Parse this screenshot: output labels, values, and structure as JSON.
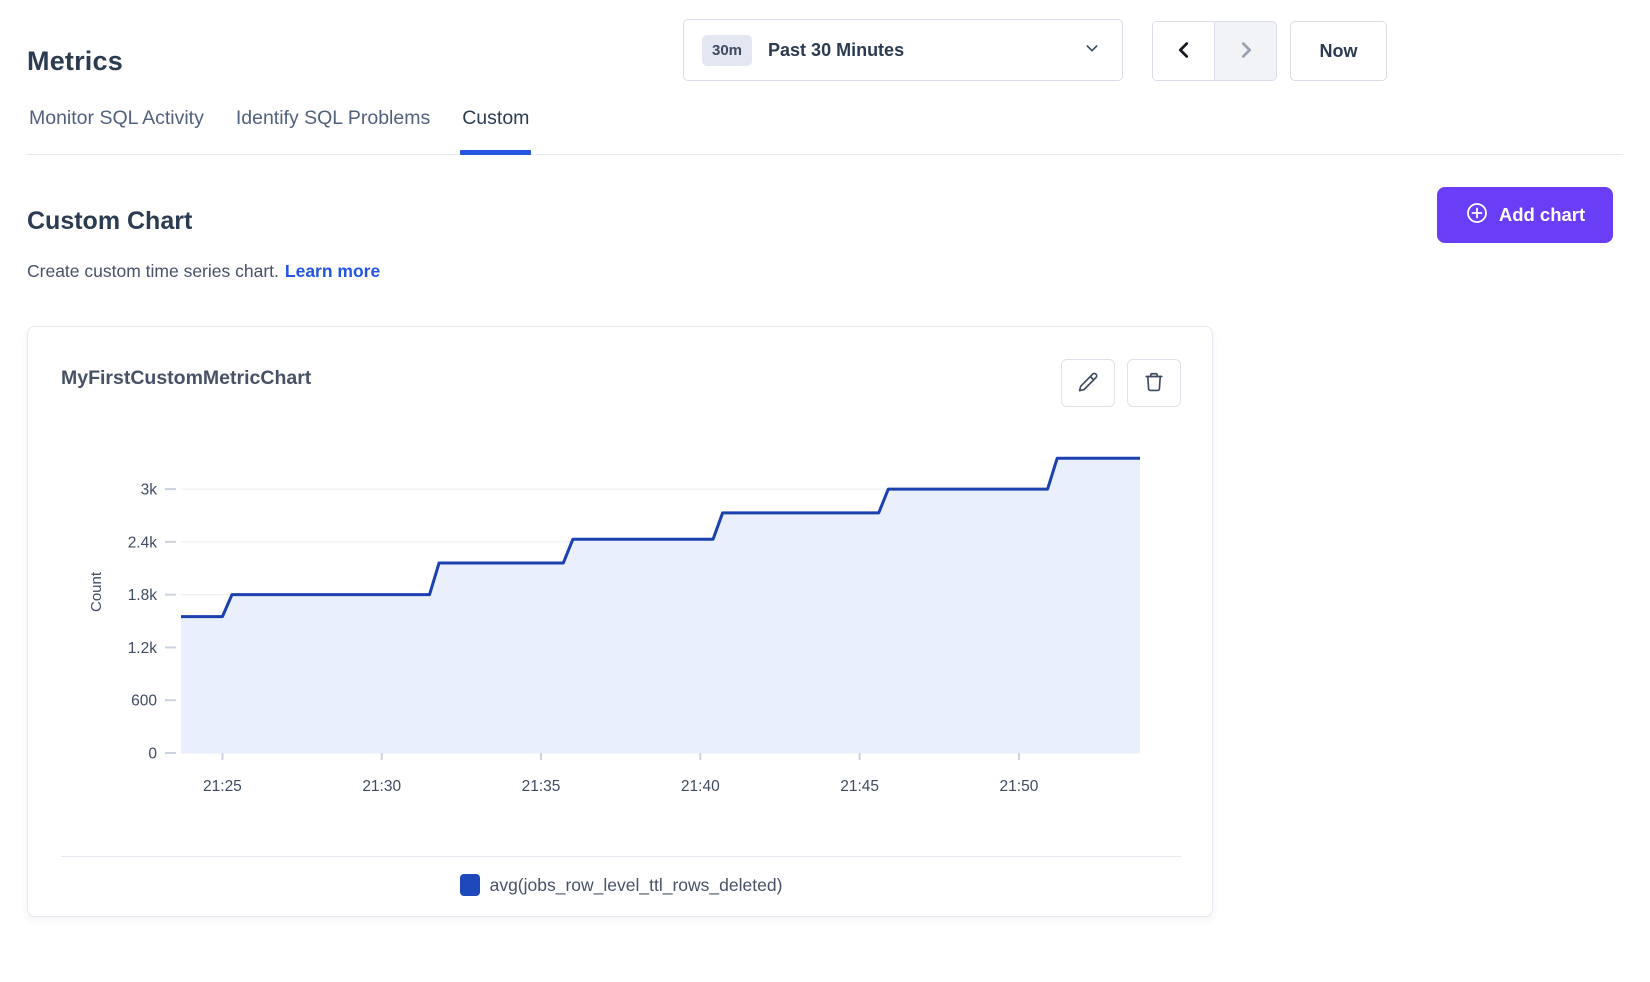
{
  "header": {
    "title": "Metrics"
  },
  "time_controls": {
    "range_badge": "30m",
    "range_label": "Past 30 Minutes",
    "now_label": "Now"
  },
  "tabs": [
    {
      "label": "Monitor SQL Activity",
      "active": false
    },
    {
      "label": "Identify SQL Problems",
      "active": false
    },
    {
      "label": "Custom",
      "active": true
    }
  ],
  "section": {
    "title": "Custom Chart",
    "description": "Create custom time series chart.",
    "learn_more_label": "Learn more",
    "add_chart_label": "Add chart"
  },
  "chart_card": {
    "title": "MyFirstCustomMetricChart"
  },
  "icons": {
    "range_dropdown": "chevron-down",
    "prev": "chevron-left",
    "next": "chevron-right (disabled)",
    "add": "plus-circle",
    "edit": "pencil",
    "delete": "trash"
  },
  "colors": {
    "accent_purple": "#6a3df7",
    "link_blue": "#2455e4",
    "tab_underline": "#2556e0",
    "series_line": "#1b40b0",
    "series_fill": "#e9effc",
    "legend_swatch": "#1e48bb"
  },
  "chart_data": {
    "type": "area",
    "title": "MyFirstCustomMetricChart",
    "ylabel": "Count",
    "xlabel": "",
    "grid": true,
    "legend_position": "bottom",
    "x_axis": "time of day (HH:MM)",
    "t_range_minutes_after_21h": [
      23.7,
      53.8
    ],
    "ylim": [
      0,
      3660
    ],
    "y_ticks": [
      {
        "v": 0,
        "label": "0"
      },
      {
        "v": 600,
        "label": "600"
      },
      {
        "v": 1200,
        "label": "1.2k"
      },
      {
        "v": 1800,
        "label": "1.8k"
      },
      {
        "v": 2400,
        "label": "2.4k"
      },
      {
        "v": 3000,
        "label": "3k"
      }
    ],
    "x_ticks": [
      {
        "t": 25,
        "label": "21:25"
      },
      {
        "t": 30,
        "label": "21:30"
      },
      {
        "t": 35,
        "label": "21:35"
      },
      {
        "t": 40,
        "label": "21:40"
      },
      {
        "t": 45,
        "label": "21:45"
      },
      {
        "t": 50,
        "label": "21:50"
      }
    ],
    "series": [
      {
        "name": "avg(jobs_row_level_ttl_rows_deleted)",
        "line_color": "#1b40b0",
        "fill_color": "#e9effc",
        "points_t_v": [
          [
            23.7,
            1550
          ],
          [
            25.0,
            1550
          ],
          [
            25.3,
            1800
          ],
          [
            31.5,
            1800
          ],
          [
            31.8,
            2160
          ],
          [
            35.7,
            2160
          ],
          [
            36.0,
            2430
          ],
          [
            40.4,
            2430
          ],
          [
            40.7,
            2730
          ],
          [
            45.6,
            2730
          ],
          [
            45.9,
            3000
          ],
          [
            50.9,
            3000
          ],
          [
            51.2,
            3350
          ],
          [
            53.8,
            3350
          ]
        ]
      }
    ]
  }
}
